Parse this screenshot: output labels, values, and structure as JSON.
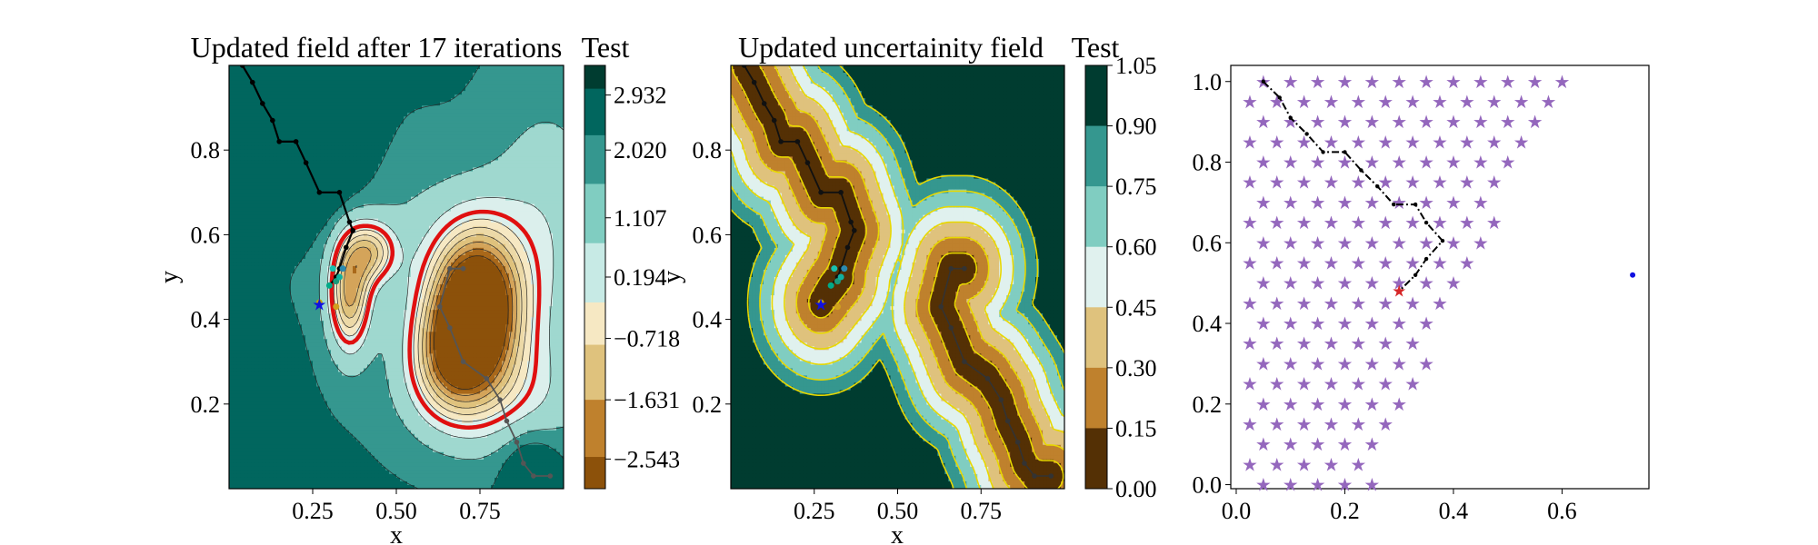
{
  "colors": {
    "brbg": [
      "#543005",
      "#8c510a",
      "#bf812d",
      "#dfc27d",
      "#f6e8c3",
      "#c7eae5",
      "#80cdc1",
      "#35978f",
      "#01665e",
      "#003c30"
    ],
    "boundary": "#e01010",
    "uncert_line": "#e8d800",
    "path": "#000000",
    "stars": "#9467bd",
    "current": "#d62728",
    "blue": "#1010e0"
  },
  "chart_data": [
    {
      "type": "contour",
      "title": "Updated field after 17 iterations",
      "colorbar_title": "Test",
      "xlabel": "x",
      "ylabel": "y",
      "xlim": [
        0.0,
        1.0
      ],
      "ylim": [
        0.0,
        1.0
      ],
      "x_ticks": [
        "0.25",
        "0.50",
        "0.75"
      ],
      "x_tick_values": [
        0.25,
        0.5,
        0.75
      ],
      "y_ticks": [
        "0.2",
        "0.4",
        "0.6",
        "0.8"
      ],
      "y_tick_values": [
        0.2,
        0.4,
        0.6,
        0.8
      ],
      "colorbar_ticks": [
        "2.932",
        "2.020",
        "1.107",
        "0.194",
        "−0.718",
        "−1.631",
        "−2.543"
      ],
      "colorbar_range": [
        -3.0,
        3.39
      ],
      "boundary_level": 0.0,
      "path_upper": [
        [
          0.04,
          1.0
        ],
        [
          0.07,
          0.96
        ],
        [
          0.1,
          0.91
        ],
        [
          0.13,
          0.87
        ],
        [
          0.15,
          0.82
        ],
        [
          0.2,
          0.82
        ],
        [
          0.23,
          0.77
        ],
        [
          0.27,
          0.7
        ],
        [
          0.33,
          0.7
        ],
        [
          0.36,
          0.63
        ],
        [
          0.37,
          0.61
        ],
        [
          0.35,
          0.57
        ],
        [
          0.33,
          0.52
        ],
        [
          0.32,
          0.5
        ],
        [
          0.3,
          0.48
        ]
      ],
      "path_lower": [
        [
          0.7,
          0.52
        ],
        [
          0.66,
          0.52
        ],
        [
          0.63,
          0.43
        ],
        [
          0.66,
          0.38
        ],
        [
          0.7,
          0.3
        ],
        [
          0.77,
          0.26
        ],
        [
          0.81,
          0.21
        ],
        [
          0.83,
          0.16
        ],
        [
          0.86,
          0.11
        ],
        [
          0.88,
          0.06
        ],
        [
          0.91,
          0.03
        ],
        [
          0.96,
          0.03
        ]
      ],
      "samples": [
        [
          0.3,
          0.48
        ],
        [
          0.32,
          0.49
        ],
        [
          0.33,
          0.5
        ],
        [
          0.31,
          0.52
        ],
        [
          0.34,
          0.52
        ],
        [
          0.32,
          0.43
        ],
        [
          0.27,
          0.44
        ]
      ],
      "best_point": [
        0.27,
        0.435
      ]
    },
    {
      "type": "contour",
      "title": "Updated uncertainity field",
      "colorbar_title": "Test",
      "xlabel": "x",
      "ylabel": "y",
      "xlim": [
        0.0,
        1.0
      ],
      "ylim": [
        0.0,
        1.0
      ],
      "x_ticks": [
        "0.25",
        "0.50",
        "0.75"
      ],
      "x_tick_values": [
        0.25,
        0.5,
        0.75
      ],
      "y_ticks": [
        "0.2",
        "0.4",
        "0.6",
        "0.8"
      ],
      "y_tick_values": [
        0.2,
        0.4,
        0.6,
        0.8
      ],
      "colorbar_ticks": [
        "1.05",
        "0.90",
        "0.75",
        "0.60",
        "0.45",
        "0.30",
        "0.15",
        "0.00"
      ],
      "levels": [
        0.0,
        0.15,
        0.3,
        0.45,
        0.6,
        0.75,
        0.9,
        1.05
      ],
      "best_point": [
        0.27,
        0.435
      ]
    },
    {
      "type": "scatter",
      "x_ticks": [
        "0.0",
        "0.2",
        "0.4",
        "0.6"
      ],
      "x_tick_values": [
        0.0,
        0.2,
        0.4,
        0.6
      ],
      "y_ticks": [
        "0.0",
        "0.2",
        "0.4",
        "0.6",
        "0.8",
        "1.0"
      ],
      "y_tick_values": [
        0.0,
        0.2,
        0.4,
        0.6,
        0.8,
        1.0
      ],
      "xlim": [
        -0.01,
        0.76
      ],
      "ylim": [
        -0.01,
        1.04
      ],
      "grid_step": 0.05,
      "grid_row_step": 0.05,
      "path": [
        [
          0.05,
          1.0
        ],
        [
          0.08,
          0.96
        ],
        [
          0.1,
          0.91
        ],
        [
          0.13,
          0.87
        ],
        [
          0.16,
          0.825
        ],
        [
          0.2,
          0.825
        ],
        [
          0.23,
          0.78
        ],
        [
          0.26,
          0.74
        ],
        [
          0.29,
          0.695
        ],
        [
          0.33,
          0.695
        ],
        [
          0.35,
          0.65
        ],
        [
          0.38,
          0.605
        ],
        [
          0.35,
          0.56
        ],
        [
          0.33,
          0.52
        ],
        [
          0.3,
          0.48
        ]
      ],
      "current_point": [
        0.3,
        0.48
      ],
      "outlier_point": [
        0.73,
        0.52
      ]
    }
  ]
}
